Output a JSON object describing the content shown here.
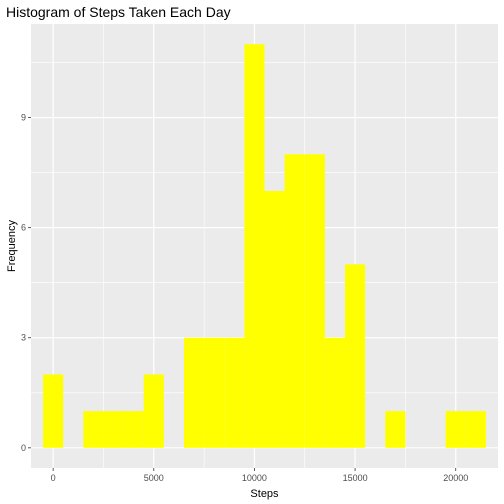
{
  "chart_data": {
    "type": "bar",
    "title": "Histogram of Steps Taken Each Day",
    "xlabel": "Steps",
    "ylabel": "Frequency",
    "bin_width": 1000,
    "bins": [
      {
        "x": 0,
        "count": 2
      },
      {
        "x": 1000,
        "count": 0
      },
      {
        "x": 2000,
        "count": 1
      },
      {
        "x": 3000,
        "count": 1
      },
      {
        "x": 4000,
        "count": 1
      },
      {
        "x": 5000,
        "count": 2
      },
      {
        "x": 6000,
        "count": 0
      },
      {
        "x": 7000,
        "count": 3
      },
      {
        "x": 8000,
        "count": 3
      },
      {
        "x": 9000,
        "count": 3
      },
      {
        "x": 10000,
        "count": 11
      },
      {
        "x": 11000,
        "count": 7
      },
      {
        "x": 12000,
        "count": 8
      },
      {
        "x": 13000,
        "count": 8
      },
      {
        "x": 14000,
        "count": 3
      },
      {
        "x": 15000,
        "count": 5
      },
      {
        "x": 16000,
        "count": 0
      },
      {
        "x": 17000,
        "count": 1
      },
      {
        "x": 18000,
        "count": 0
      },
      {
        "x": 19000,
        "count": 0
      },
      {
        "x": 20000,
        "count": 1
      },
      {
        "x": 21000,
        "count": 1
      }
    ],
    "xlim": [
      -1100,
      22100
    ],
    "ylim": [
      -0.55,
      11.55
    ],
    "x_ticks": [
      0,
      5000,
      10000,
      15000,
      20000
    ],
    "x_tick_labels": [
      "0",
      "5000",
      "10000",
      "15000",
      "20000"
    ],
    "y_ticks": [
      0,
      3,
      6,
      9
    ],
    "y_tick_labels": [
      "0",
      "3",
      "6",
      "9"
    ],
    "grid": true,
    "bar_color": "#FFFF00",
    "panel_color": "#EBEBEB",
    "grid_color": "#FFFFFF"
  }
}
